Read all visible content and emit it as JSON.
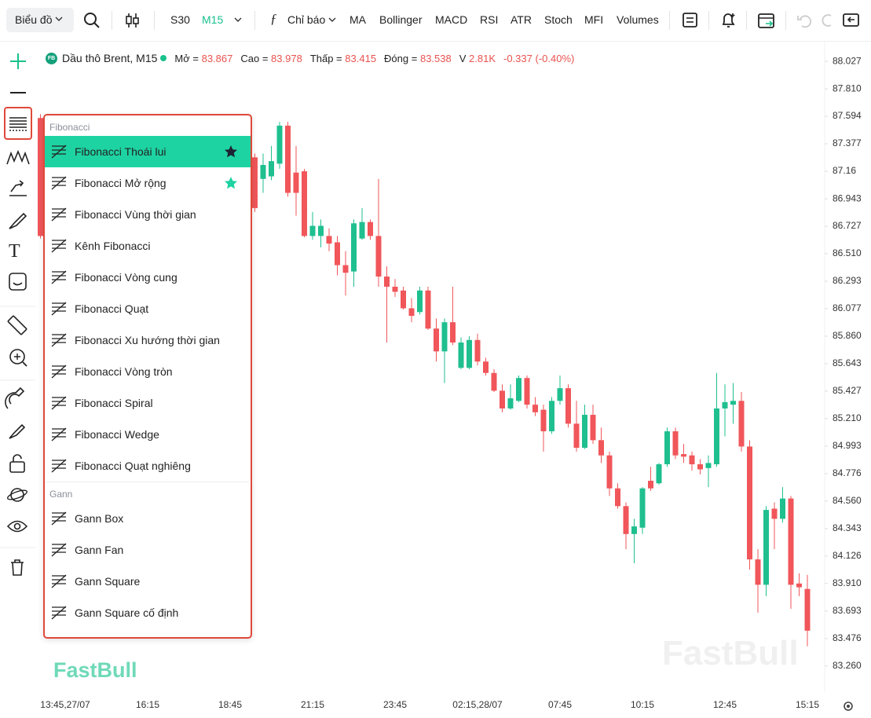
{
  "toolbar": {
    "chart_menu": "Biểu đồ",
    "intervals": [
      "S30",
      "M15"
    ],
    "indicators_menu": "Chỉ báo",
    "indicators": [
      "MA",
      "Bollinger",
      "MACD",
      "RSI",
      "ATR",
      "Stoch",
      "MFI",
      "Volumes"
    ]
  },
  "legend": {
    "symbol_badge": "FB",
    "symbol": "Dầu thô Brent, M15",
    "open_label": "Mở =",
    "high_label": "Cao =",
    "low_label": "Thấp =",
    "close_label": "Đóng =",
    "volume_label": "V",
    "volume": "2.81K",
    "change": "-0.337 (-0.40%)"
  },
  "menu": {
    "sections": [
      {
        "title": "Fibonacci",
        "items": [
          "Fibonacci Thoái lui",
          "Fibonacci Mở rộng",
          "Fibonacci Vùng thời gian",
          "Kênh Fibonacci",
          "Fibonacci Vòng cung",
          "Fibonacci Quạt",
          "Fibonacci Xu hướng thời gian",
          "Fibonacci Vòng tròn",
          "Fibonacci Spiral",
          "Fibonacci Wedge",
          "Fibonacci Quạt nghiêng"
        ]
      },
      {
        "title": "Gann",
        "items": [
          "Gann Box",
          "Gann Fan",
          "Gann Square",
          "Gann Square cố định"
        ]
      }
    ]
  },
  "brand": "FastBull",
  "chart_data": {
    "type": "candlestick",
    "up_color": "#1fbf8f",
    "down_color": "#f0565a",
    "categories": [
      null,
      null,
      null,
      "13:45,27/07",
      null,
      null,
      null,
      null,
      null,
      null,
      null,
      null,
      null,
      "16:15",
      null,
      null,
      null,
      null,
      null,
      null,
      null,
      null,
      null,
      "18:45",
      null,
      null,
      null,
      null,
      null,
      null,
      null,
      null,
      null,
      "21:15",
      null,
      null,
      null,
      null,
      null,
      null,
      null,
      null,
      null,
      "23:45",
      null,
      null,
      null,
      null,
      null,
      null,
      null,
      null,
      null,
      "02:15,28/07",
      null,
      null,
      null,
      null,
      null,
      null,
      null,
      null,
      null,
      "07:45",
      null,
      null,
      null,
      null,
      null,
      null,
      null,
      null,
      null,
      "10:15",
      null,
      null,
      null,
      null,
      null,
      null,
      null,
      null,
      null,
      "12:45",
      null,
      null,
      null,
      null,
      null,
      null,
      null,
      null,
      null,
      "15:15"
    ],
    "open": [
      87.58,
      null,
      null,
      null,
      null,
      null,
      null,
      null,
      null,
      null,
      null,
      null,
      null,
      null,
      null,
      null,
      null,
      null,
      null,
      null,
      null,
      null,
      null,
      null,
      null,
      null,
      87.27,
      87.1,
      87.12,
      87.22,
      87.52,
      87.15,
      87.16,
      86.65,
      86.65,
      86.65,
      86.6,
      86.42,
      86.37,
      86.63,
      86.76,
      86.65,
      86.33,
      86.25,
      86.22,
      86.08,
      86.05,
      86.22,
      85.92,
      85.74,
      85.97,
      85.61,
      85.61,
      85.83,
      85.66,
      85.57,
      85.43,
      85.29,
      85.35,
      85.53,
      85.32,
      85.28,
      85.11,
      85.35,
      85.45,
      85.17,
      84.98,
      85.24,
      85.04,
      84.92,
      84.66,
      84.52,
      84.3,
      84.35,
      84.72,
      84.7,
      84.85,
      85.11,
      84.93,
      84.92,
      84.85,
      84.82,
      84.85,
      85.29,
      85.32,
      85.35,
      84.99,
      84.1,
      83.9,
      84.5,
      84.42,
      84.58,
      83.91,
      83.867
    ],
    "high": [
      87.61,
      null,
      null,
      null,
      null,
      null,
      null,
      null,
      null,
      null,
      null,
      null,
      null,
      null,
      null,
      null,
      null,
      null,
      null,
      null,
      null,
      null,
      null,
      null,
      null,
      null,
      87.3,
      87.3,
      87.36,
      87.55,
      87.55,
      87.36,
      87.18,
      86.84,
      86.78,
      86.71,
      86.65,
      86.53,
      86.78,
      86.87,
      86.78,
      87.1,
      86.41,
      86.31,
      86.25,
      86.16,
      86.25,
      86.25,
      86.0,
      86.0,
      86.25,
      85.85,
      85.86,
      85.88,
      85.69,
      85.6,
      85.48,
      85.48,
      85.55,
      85.55,
      85.38,
      85.32,
      85.38,
      85.55,
      85.48,
      85.35,
      85.32,
      85.32,
      85.14,
      84.95,
      84.7,
      84.55,
      84.42,
      84.67,
      84.83,
      84.86,
      85.14,
      85.14,
      85.01,
      84.95,
      84.89,
      84.92,
      85.57,
      85.48,
      85.49,
      85.42,
      85.04,
      84.18,
      84.52,
      84.55,
      84.67,
      84.6,
      83.99,
      83.978
    ],
    "low": [
      86.63,
      null,
      null,
      null,
      null,
      null,
      null,
      null,
      null,
      null,
      null,
      null,
      null,
      null,
      null,
      null,
      null,
      null,
      null,
      null,
      null,
      null,
      null,
      null,
      null,
      null,
      86.84,
      86.99,
      87.09,
      87.18,
      86.96,
      86.81,
      86.64,
      86.62,
      86.56,
      86.53,
      86.34,
      86.18,
      86.25,
      86.62,
      86.62,
      86.25,
      85.81,
      86.17,
      86.07,
      85.97,
      86.03,
      85.91,
      85.66,
      85.49,
      85.79,
      85.6,
      85.6,
      85.63,
      85.55,
      85.42,
      85.26,
      85.28,
      85.34,
      85.29,
      85.23,
      84.95,
      85.09,
      85.32,
      85.14,
      84.95,
      84.97,
      85.01,
      84.86,
      84.6,
      84.5,
      84.18,
      84.07,
      84.3,
      84.64,
      84.69,
      84.83,
      84.89,
      84.86,
      84.8,
      84.77,
      84.67,
      84.83,
      85.07,
      85.17,
      84.95,
      84.02,
      83.68,
      83.81,
      84.18,
      84.39,
      83.71,
      83.81,
      83.415
    ],
    "close": [
      86.65,
      null,
      null,
      null,
      null,
      null,
      null,
      null,
      null,
      null,
      null,
      null,
      null,
      null,
      null,
      null,
      null,
      null,
      null,
      null,
      null,
      null,
      null,
      null,
      null,
      null,
      86.87,
      87.21,
      87.24,
      87.52,
      86.99,
      86.99,
      86.65,
      86.73,
      86.73,
      86.59,
      86.42,
      86.36,
      86.75,
      86.76,
      86.65,
      86.33,
      86.25,
      86.21,
      86.08,
      86.02,
      86.22,
      85.92,
      85.74,
      85.97,
      85.81,
      85.81,
      85.83,
      85.66,
      85.57,
      85.43,
      85.29,
      85.37,
      85.53,
      85.32,
      85.26,
      85.11,
      85.35,
      85.45,
      85.17,
      84.98,
      85.24,
      85.04,
      84.92,
      84.66,
      84.52,
      84.3,
      84.36,
      84.66,
      84.66,
      84.85,
      85.11,
      84.92,
      84.91,
      84.85,
      84.81,
      84.86,
      85.29,
      85.34,
      85.35,
      84.99,
      84.1,
      83.9,
      84.49,
      84.42,
      84.58,
      83.9,
      83.88,
      83.538
    ],
    "ylim": [
      83.06,
      88.17
    ],
    "yticks": [
      88.027,
      {
        "value": 87.81,
        "label": "87.810"
      },
      87.594,
      87.377,
      87.16,
      86.943,
      86.727,
      {
        "value": 86.51,
        "label": "86.510"
      },
      86.293,
      86.077,
      {
        "value": 85.86,
        "label": "85.860"
      },
      85.643,
      85.427,
      {
        "value": 85.21,
        "label": "85.210"
      },
      84.993,
      84.776,
      {
        "value": 84.56,
        "label": "84.560"
      },
      84.343,
      84.126,
      {
        "value": 83.91,
        "label": "83.910"
      },
      83.693,
      83.476,
      {
        "value": 83.26,
        "label": "83.260"
      }
    ]
  }
}
